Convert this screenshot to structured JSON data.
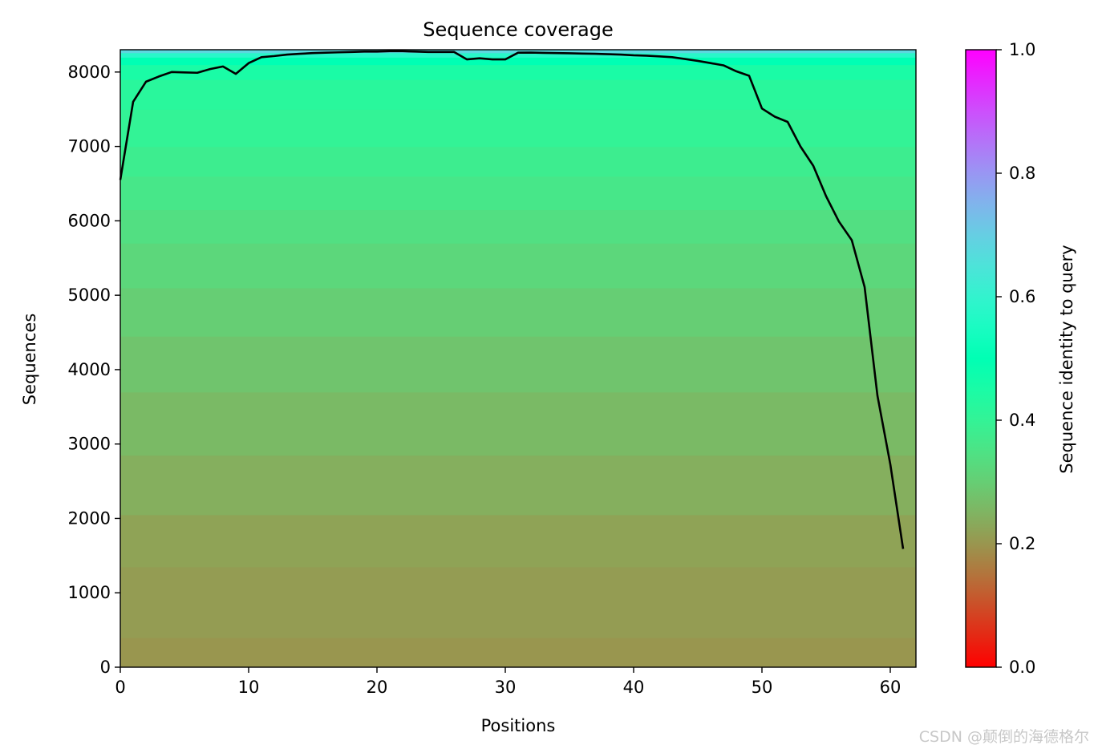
{
  "chart_data": {
    "type": "heatmap",
    "title": "Sequence coverage",
    "xlabel": "Positions",
    "ylabel": "Sequences",
    "xlim": [
      0,
      62
    ],
    "ylim": [
      0,
      8300
    ],
    "xticks": [
      "0",
      "10",
      "20",
      "30",
      "40",
      "50",
      "60"
    ],
    "yticks": [
      "0",
      "1000",
      "2000",
      "3000",
      "4000",
      "5000",
      "6000",
      "7000",
      "8000"
    ],
    "colorbar": {
      "label": "Sequence identity to query",
      "range": [
        0.0,
        1.0
      ],
      "ticks": [
        "0.0",
        "0.2",
        "0.4",
        "0.6",
        "0.8",
        "1.0"
      ],
      "colormap": "rainbow_r"
    },
    "identity_bands": [
      {
        "from": 0,
        "to": 400,
        "identity": 0.2
      },
      {
        "from": 400,
        "to": 1350,
        "identity": 0.21
      },
      {
        "from": 1350,
        "to": 2050,
        "identity": 0.22
      },
      {
        "from": 2050,
        "to": 2850,
        "identity": 0.24
      },
      {
        "from": 2850,
        "to": 3700,
        "identity": 0.26
      },
      {
        "from": 3700,
        "to": 4450,
        "identity": 0.28
      },
      {
        "from": 4450,
        "to": 5100,
        "identity": 0.3
      },
      {
        "from": 5100,
        "to": 5700,
        "identity": 0.32
      },
      {
        "from": 5700,
        "to": 6150,
        "identity": 0.34
      },
      {
        "from": 6150,
        "to": 6600,
        "identity": 0.36
      },
      {
        "from": 6600,
        "to": 7000,
        "identity": 0.38
      },
      {
        "from": 7000,
        "to": 7500,
        "identity": 0.4
      },
      {
        "from": 7500,
        "to": 7900,
        "identity": 0.42
      },
      {
        "from": 7900,
        "to": 8100,
        "identity": 0.45
      },
      {
        "from": 8100,
        "to": 8200,
        "identity": 0.5
      },
      {
        "from": 8200,
        "to": 8260,
        "identity": 0.58
      },
      {
        "from": 8260,
        "to": 8300,
        "identity": 0.68
      }
    ],
    "coverage": {
      "x": [
        0,
        1,
        2,
        3,
        4,
        5,
        6,
        7,
        8,
        9,
        10,
        11,
        12,
        13,
        14,
        15,
        16,
        17,
        18,
        19,
        20,
        21,
        22,
        23,
        24,
        25,
        26,
        27,
        28,
        29,
        30,
        31,
        32,
        33,
        34,
        35,
        36,
        37,
        38,
        39,
        40,
        41,
        42,
        43,
        44,
        45,
        46,
        47,
        48,
        49,
        50,
        51,
        52,
        53,
        54,
        55,
        56,
        57,
        58,
        59,
        60,
        61
      ],
      "y": [
        6550,
        7600,
        7870,
        7940,
        8000,
        7995,
        7990,
        8040,
        8075,
        7975,
        8120,
        8200,
        8215,
        8235,
        8245,
        8255,
        8260,
        8265,
        8270,
        8275,
        8275,
        8280,
        8280,
        8275,
        8270,
        8270,
        8270,
        8170,
        8185,
        8170,
        8170,
        8260,
        8262,
        8258,
        8255,
        8252,
        8248,
        8245,
        8240,
        8235,
        8225,
        8220,
        8210,
        8200,
        8175,
        8150,
        8120,
        8090,
        8010,
        7950,
        7510,
        7400,
        7330,
        7000,
        6740,
        6330,
        5990,
        5740,
        5110,
        3650,
        2730,
        1590
      ]
    }
  }
}
